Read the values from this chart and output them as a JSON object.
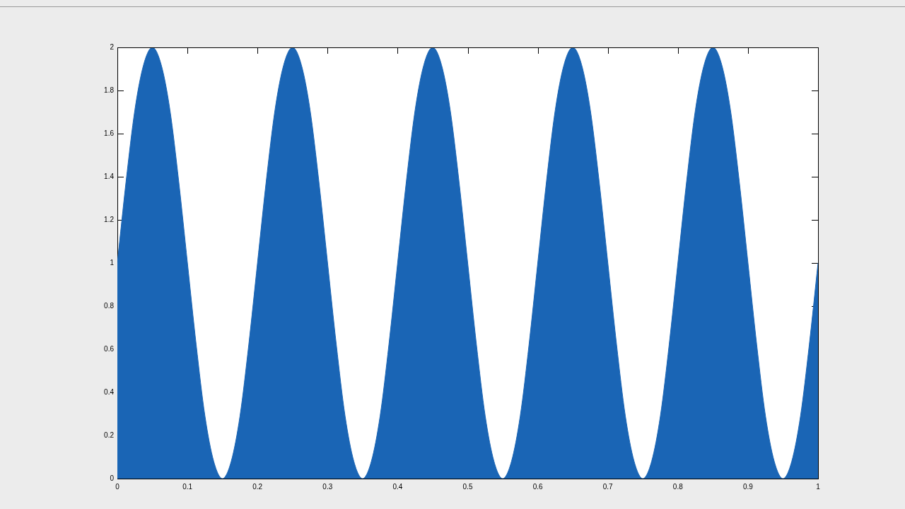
{
  "chart_data": {
    "type": "area",
    "x": [
      0,
      0.0125,
      0.025,
      0.0375,
      0.05,
      0.0625,
      0.075,
      0.0875,
      0.1,
      0.1125,
      0.125,
      0.1375,
      0.15,
      0.1625,
      0.175,
      0.1875,
      0.2,
      0.2125,
      0.225,
      0.2375,
      0.25,
      0.2625,
      0.275,
      0.2875,
      0.3,
      0.3125,
      0.325,
      0.3375,
      0.35,
      0.3625,
      0.375,
      0.3875,
      0.4,
      0.4125,
      0.425,
      0.4375,
      0.45,
      0.4625,
      0.475,
      0.4875,
      0.5,
      0.5125,
      0.525,
      0.5375,
      0.55,
      0.5625,
      0.575,
      0.5875,
      0.6,
      0.6125,
      0.625,
      0.6375,
      0.65,
      0.6625,
      0.675,
      0.6875,
      0.7,
      0.7125,
      0.725,
      0.7375,
      0.75,
      0.7625,
      0.775,
      0.7875,
      0.8,
      0.8125,
      0.825,
      0.8375,
      0.85,
      0.8625,
      0.875,
      0.8875,
      0.9,
      0.9125,
      0.925,
      0.9375,
      0.95,
      0.9625,
      0.975,
      0.9875,
      1
    ],
    "values": [
      1,
      1.38,
      1.71,
      1.92,
      2,
      1.92,
      1.71,
      1.38,
      1,
      0.62,
      0.29,
      0.08,
      0,
      0.08,
      0.29,
      0.62,
      1,
      1.38,
      1.71,
      1.92,
      2,
      1.92,
      1.71,
      1.38,
      1,
      0.62,
      0.29,
      0.08,
      0,
      0.08,
      0.29,
      0.62,
      1,
      1.38,
      1.71,
      1.92,
      2,
      1.92,
      1.71,
      1.38,
      1,
      0.62,
      0.29,
      0.08,
      0,
      0.08,
      0.29,
      0.62,
      1,
      1.38,
      1.71,
      1.92,
      2,
      1.92,
      1.71,
      1.38,
      1,
      0.62,
      0.29,
      0.08,
      0,
      0.08,
      0.29,
      0.62,
      1,
      1.38,
      1.71,
      1.92,
      2,
      1.92,
      1.71,
      1.38,
      1,
      0.62,
      0.29,
      0.08,
      0,
      0.08,
      0.29,
      0.62,
      1
    ],
    "color": "#1a65b5",
    "xlim": [
      0,
      1
    ],
    "ylim": [
      0,
      2
    ],
    "xticks": [
      0,
      0.1,
      0.2,
      0.3,
      0.4,
      0.5,
      0.6,
      0.7,
      0.8,
      0.9,
      1
    ],
    "yticks": [
      0,
      0.2,
      0.4,
      0.6,
      0.8,
      1,
      1.2,
      1.4,
      1.6,
      1.8,
      2
    ],
    "grid": false,
    "legend": false
  }
}
